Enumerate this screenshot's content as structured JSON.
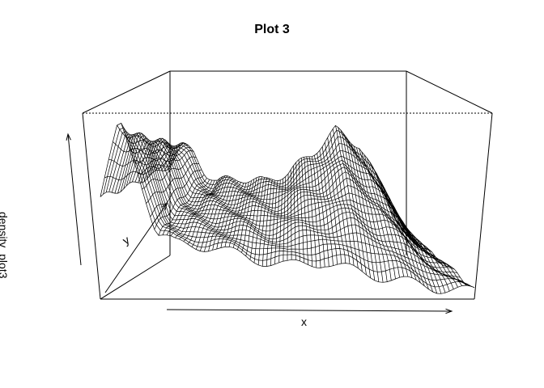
{
  "chart_data": {
    "type": "surface",
    "title": "Plot 3",
    "xlabel": "x",
    "ylabel": "y",
    "zlabel": "density_plot3",
    "grid": false,
    "style": "wireframe perspective mesh",
    "colors": {
      "line": "#000000",
      "background": "#ffffff",
      "fill": "#ffffff"
    },
    "surface_profile": {
      "description_x": "front edge z (relative 0-1) along x",
      "x": [
        0.0,
        0.05,
        0.1,
        0.15,
        0.2,
        0.3,
        0.4,
        0.5,
        0.6,
        0.7,
        0.8,
        0.9,
        1.0
      ],
      "z_front": [
        0.55,
        0.95,
        0.7,
        0.35,
        0.3,
        0.28,
        0.22,
        0.18,
        0.2,
        0.14,
        0.1,
        0.06,
        0.04
      ],
      "z_back": [
        0.5,
        0.6,
        0.55,
        0.45,
        0.4,
        0.42,
        0.4,
        0.45,
        0.55,
        0.68,
        0.6,
        0.35,
        0.1
      ]
    }
  }
}
